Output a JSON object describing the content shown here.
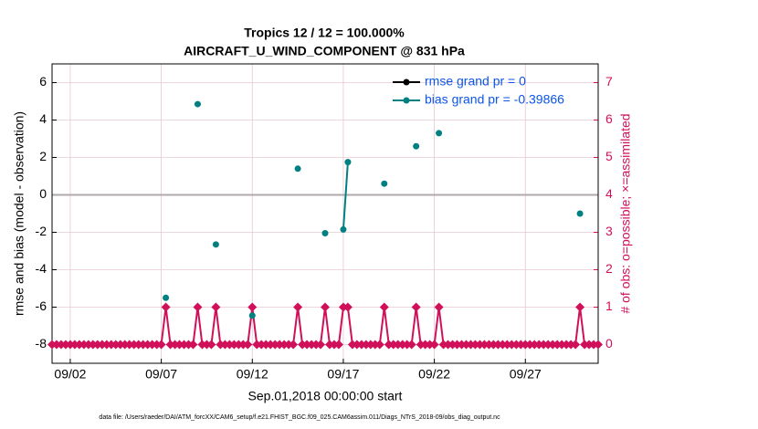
{
  "chart_data": {
    "type": "line",
    "title": "Tropics 12 / 12 = 100.000%",
    "subtitle": "AIRCRAFT_U_WIND_COMPONENT @ 831 hPa",
    "x_label": "Sep.01,2018 00:00:00 start",
    "y_label": "rmse and bias (model - observation)",
    "y2_label": "# of obs: o=possible; ×=assimilated",
    "footnote": "data file: /Users/raeder/DAI/ATM_forcXX/CAM6_setup/f.e21.FHIST_BGC.f09_025.CAM6assim.011/Diags_NTrS_2018-09/obs_diag_output.nc",
    "xlim": [
      0,
      30
    ],
    "xticks": [
      {
        "value": 1,
        "label": "09/02"
      },
      {
        "value": 6,
        "label": "09/07"
      },
      {
        "value": 11,
        "label": "09/12"
      },
      {
        "value": 16,
        "label": "09/17"
      },
      {
        "value": 21,
        "label": "09/22"
      },
      {
        "value": 26,
        "label": "09/27"
      }
    ],
    "ylim": [
      -9,
      7
    ],
    "yticks": [
      -8,
      -6,
      -4,
      -2,
      0,
      2,
      4,
      6
    ],
    "y2lim": [
      -0.5,
      7.5
    ],
    "y2ticks": [
      0,
      1,
      2,
      3,
      4,
      5,
      6,
      7
    ],
    "grid": true,
    "legend": "upper right",
    "x": [
      0,
      0.25,
      0.5,
      0.75,
      1,
      1.25,
      1.5,
      1.75,
      2,
      2.25,
      2.5,
      2.75,
      3,
      3.25,
      3.5,
      3.75,
      4,
      4.25,
      4.5,
      4.75,
      5,
      5.25,
      5.5,
      5.75,
      6,
      6.25,
      6.5,
      6.75,
      7,
      7.25,
      7.5,
      7.75,
      8,
      8.25,
      8.5,
      8.75,
      9,
      9.25,
      9.5,
      9.75,
      10,
      10.25,
      10.5,
      10.75,
      11,
      11.25,
      11.5,
      11.75,
      12,
      12.25,
      12.5,
      12.75,
      13,
      13.25,
      13.5,
      13.75,
      14,
      14.25,
      14.5,
      14.75,
      15,
      15.25,
      15.5,
      15.75,
      16,
      16.25,
      16.5,
      16.75,
      17,
      17.25,
      17.5,
      17.75,
      18,
      18.25,
      18.5,
      18.75,
      19,
      19.25,
      19.5,
      19.75,
      20,
      20.25,
      20.5,
      20.75,
      21,
      21.25,
      21.5,
      21.75,
      22,
      22.25,
      22.5,
      22.75,
      23,
      23.25,
      23.5,
      23.75,
      24,
      24.25,
      24.5,
      24.75,
      25,
      25.25,
      25.5,
      25.75,
      26,
      26.25,
      26.5,
      26.75,
      27,
      27.25,
      27.5,
      27.75,
      28,
      28.25,
      28.5,
      28.75,
      29,
      29.25,
      29.5,
      29.75,
      30
    ],
    "series": [
      {
        "name": "rmse grand pr = 0",
        "color": "#000000",
        "values": [
          null,
          null,
          null,
          null,
          null,
          null,
          null,
          null,
          null,
          null,
          null,
          null,
          null,
          null,
          null,
          null,
          null,
          null,
          null,
          null,
          null,
          null,
          null,
          null,
          null,
          null,
          null,
          null,
          null,
          null,
          null,
          null,
          null,
          null,
          null,
          null,
          null,
          null,
          null,
          null,
          null,
          null,
          null,
          null,
          null,
          null,
          null,
          null,
          null,
          null,
          null,
          null,
          null,
          null,
          null,
          null,
          null,
          null,
          null,
          null,
          null,
          null,
          null,
          null,
          null,
          null,
          null,
          null,
          null,
          null,
          null,
          null,
          null,
          null,
          null,
          null,
          null,
          null,
          null,
          null,
          null,
          null,
          null,
          null,
          null,
          null,
          null,
          null,
          null,
          null,
          null,
          null,
          null,
          null,
          null,
          null,
          null,
          null,
          null,
          null,
          null,
          null,
          null,
          null,
          null,
          null,
          null,
          null,
          null,
          null,
          null,
          null,
          null,
          null,
          null,
          null,
          null,
          null,
          null,
          null,
          null
        ]
      },
      {
        "name": "bias grand pr = -0.39866",
        "color": "#008080",
        "values": [
          null,
          null,
          null,
          null,
          null,
          null,
          null,
          null,
          null,
          null,
          null,
          null,
          null,
          null,
          null,
          null,
          null,
          null,
          null,
          null,
          null,
          null,
          null,
          null,
          null,
          -5.5,
          null,
          null,
          null,
          null,
          null,
          null,
          4.85,
          null,
          null,
          null,
          -2.65,
          null,
          null,
          null,
          null,
          null,
          null,
          null,
          -6.45,
          null,
          null,
          null,
          null,
          null,
          null,
          null,
          null,
          null,
          1.4,
          null,
          null,
          null,
          null,
          null,
          -2.05,
          null,
          null,
          null,
          -1.85,
          1.75,
          null,
          null,
          null,
          null,
          null,
          null,
          null,
          0.6,
          null,
          null,
          null,
          null,
          null,
          null,
          2.6,
          null,
          null,
          null,
          null,
          3.3,
          null,
          null,
          null,
          null,
          null,
          null,
          null,
          null,
          null,
          null,
          null,
          null,
          null,
          null,
          null,
          null,
          null,
          null,
          null,
          null,
          null,
          null,
          null,
          null,
          null,
          null,
          null,
          null,
          null,
          null,
          -1.0,
          null,
          null,
          null,
          null
        ]
      },
      {
        "color": "#d0115a",
        "axis": "y2",
        "values": [
          0,
          0,
          0,
          0,
          0,
          0,
          0,
          0,
          0,
          0,
          0,
          0,
          0,
          0,
          0,
          0,
          0,
          0,
          0,
          0,
          0,
          0,
          0,
          0,
          0,
          1,
          0,
          0,
          0,
          0,
          0,
          0,
          1,
          0,
          0,
          0,
          1,
          0,
          0,
          0,
          0,
          0,
          0,
          0,
          1,
          0,
          0,
          0,
          0,
          0,
          0,
          0,
          0,
          0,
          1,
          0,
          0,
          0,
          0,
          0,
          1,
          0,
          0,
          0,
          1,
          1,
          0,
          0,
          0,
          0,
          0,
          0,
          0,
          1,
          0,
          0,
          0,
          0,
          0,
          0,
          1,
          0,
          0,
          0,
          0,
          1,
          0,
          0,
          0,
          0,
          0,
          0,
          0,
          0,
          0,
          0,
          0,
          0,
          0,
          0,
          0,
          0,
          0,
          0,
          0,
          0,
          0,
          0,
          0,
          0,
          0,
          0,
          0,
          0,
          0,
          0,
          1,
          0,
          0,
          0,
          0
        ]
      }
    ]
  }
}
